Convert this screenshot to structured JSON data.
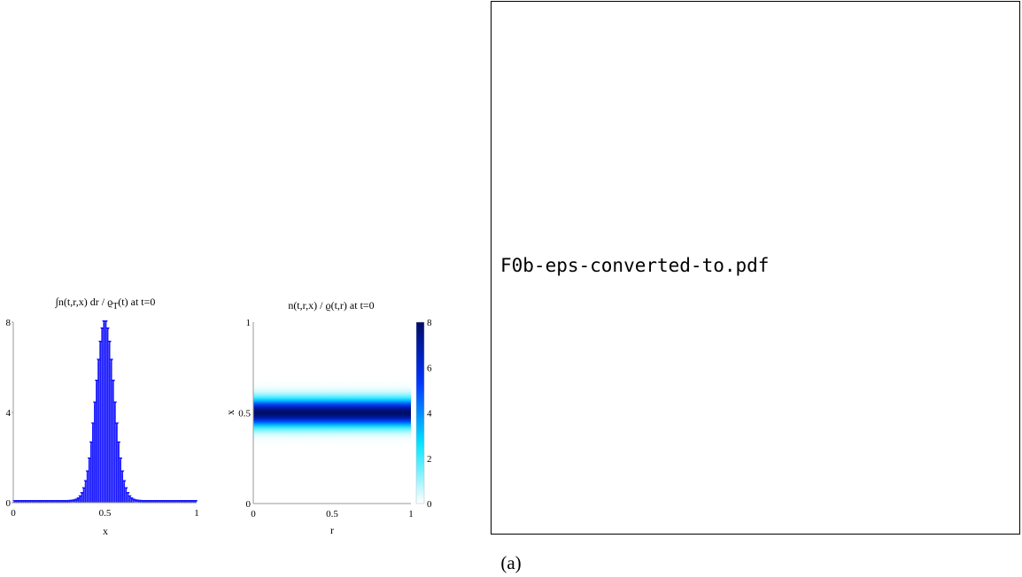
{
  "placeholder": {
    "filename": "F0b-eps-converted-to.pdf"
  },
  "caption": "(a)",
  "chart_data": [
    {
      "type": "bar",
      "title": "∫n(t,r,x) dr / ϱT(t) at t=0",
      "title_main": "∫n(t,r,x) dr / ϱ",
      "title_sub": "T",
      "title_tail": "(t) at t=0",
      "xlabel": "x",
      "ylabel": "",
      "xlim": [
        0,
        1
      ],
      "ylim": [
        0,
        8
      ],
      "xticks": [
        "0",
        "0.5",
        "1"
      ],
      "yticks": [
        "0",
        "4",
        "8"
      ],
      "color": "#1a1aff",
      "distribution": {
        "shape": "gaussian",
        "mean": 0.5,
        "std": 0.05,
        "peak": 8.0,
        "bins": 100
      }
    },
    {
      "type": "heatmap",
      "title": "n(t,r,x) / ϱ(t,r) at t=0",
      "xlabel": "r",
      "ylabel": "x",
      "xlim": [
        0,
        1
      ],
      "ylim": [
        0,
        1
      ],
      "xticks": [
        "0",
        "0.5",
        "1"
      ],
      "yticks": [
        "0",
        "0.5",
        "1"
      ],
      "colorbar": {
        "min": 0,
        "max": 8,
        "ticks": [
          "0",
          "2",
          "4",
          "6",
          "8"
        ]
      },
      "colormap": [
        "#ffffff",
        "#00e5ff",
        "#0033ff",
        "#000c66"
      ],
      "profile": {
        "shape": "gaussian-in-x",
        "mean": 0.5,
        "std": 0.05,
        "peak": 8.0
      }
    }
  ]
}
